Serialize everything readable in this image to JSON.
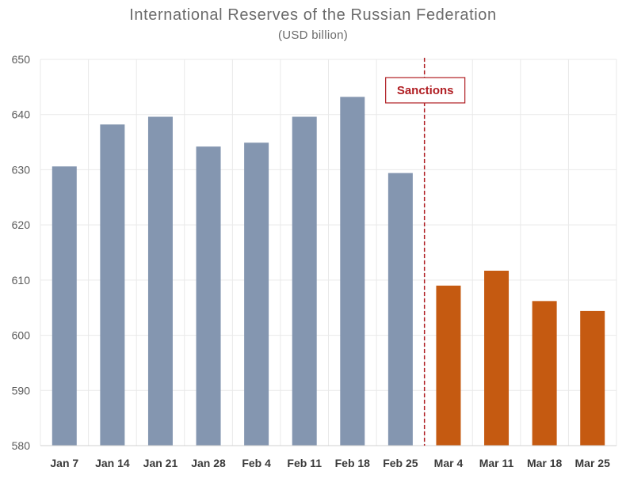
{
  "chart_data": {
    "type": "bar",
    "title": "International Reserves of the Russian Federation",
    "subtitle": "(USD billion)",
    "xlabel": "",
    "ylabel": "",
    "ylim": [
      580,
      650
    ],
    "yticks": [
      580,
      590,
      600,
      610,
      620,
      630,
      640,
      650
    ],
    "grid": true,
    "categories": [
      "Jan 7",
      "Jan 14",
      "Jan 21",
      "Jan 28",
      "Feb 4",
      "Feb 11",
      "Feb 18",
      "Feb 25",
      "Mar 4",
      "Mar 11",
      "Mar 18",
      "Mar 25"
    ],
    "values": [
      630.6,
      638.2,
      639.6,
      634.2,
      634.9,
      639.6,
      643.2,
      629.4,
      609.0,
      611.7,
      606.2,
      604.4
    ],
    "colors": {
      "before": "#8496b0",
      "after": "#c55a11",
      "annotation": "#b01e23",
      "grid": "#e9e9e9"
    },
    "annotation": {
      "label": "Sanctions",
      "after_category": "Feb 25"
    }
  }
}
